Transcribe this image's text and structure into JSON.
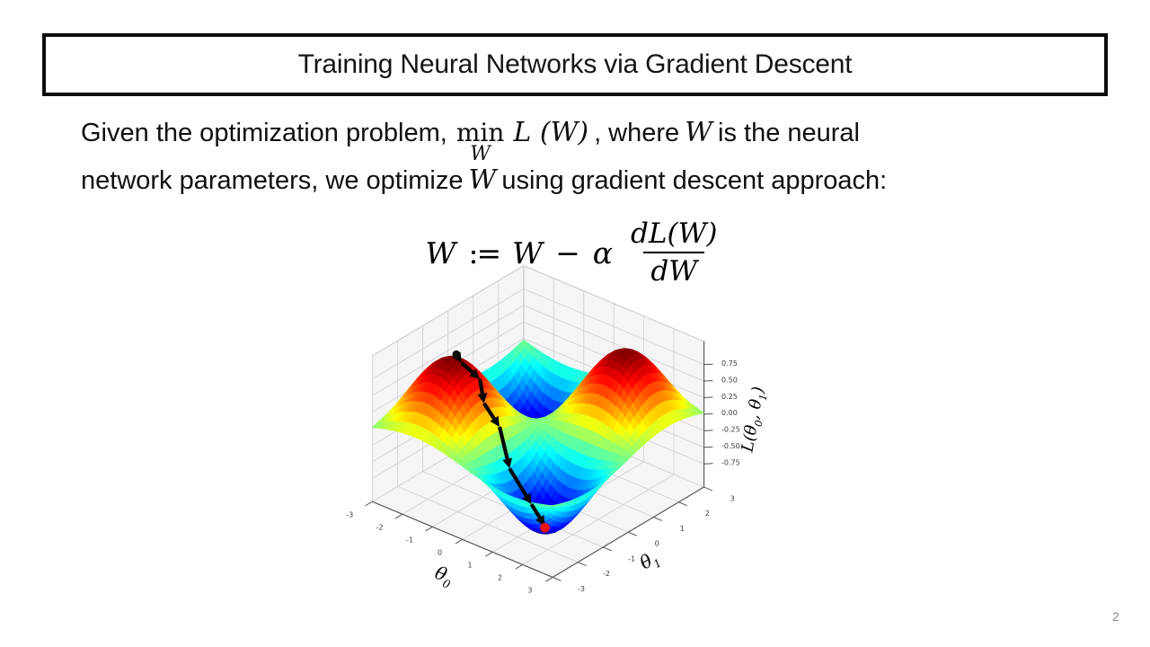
{
  "slide": {
    "title": "Training Neural Networks via Gradient Descent",
    "page_number": "2"
  },
  "body": {
    "seg1": "Given the optimization problem,",
    "min_op": "min",
    "min_sub": "W",
    "objective": "L (W)",
    "seg2": ", where",
    "w1": "W",
    "seg3": "is the neural",
    "seg4": "network parameters, we optimize",
    "w2": "W",
    "seg5": "using gradient descent approach:"
  },
  "formula": {
    "lhs": "W",
    "assign": ":=",
    "rhs_w": "W",
    "minus": "−",
    "alpha": "α",
    "numerator": "dL(W)",
    "denominator": "dW"
  },
  "chart_data": {
    "type": "surface3d",
    "title": "",
    "function": "L(theta0, theta1) = sin(theta0) * sin(theta1)",
    "colormap": "jet",
    "grid_on": true,
    "x_axis": {
      "label_parts": [
        {
          "t": "θ"
        },
        {
          "t": "0",
          "sub": true
        }
      ],
      "ticks": [
        -3,
        -2,
        -1,
        0,
        1,
        2,
        3
      ],
      "range": [
        -3,
        3
      ]
    },
    "y_axis": {
      "label_parts": [
        {
          "t": "θ"
        },
        {
          "t": "1",
          "sub": true
        }
      ],
      "ticks": [
        -3,
        -2,
        -1,
        0,
        1,
        2,
        3
      ],
      "range": [
        -3,
        3
      ]
    },
    "z_axis": {
      "label_parts": [
        {
          "t": "L("
        },
        {
          "t": "θ"
        },
        {
          "t": "0",
          "sub": true
        },
        {
          "t": ", "
        },
        {
          "t": "θ"
        },
        {
          "t": "1",
          "sub": true
        },
        {
          "t": ")"
        }
      ],
      "ticks": [
        0.75,
        0.5,
        0.25,
        0,
        -0.25,
        -0.5,
        -0.75
      ],
      "range": [
        -1.1,
        1.1
      ]
    },
    "surface": {
      "amplitude": 1,
      "grid_n": 40
    },
    "descent_path": {
      "points": [
        [
          -1.55,
          -1.4
        ],
        [
          -1.25,
          -1.55
        ],
        [
          -0.85,
          -1.3
        ],
        [
          -0.5,
          -1.55
        ],
        [
          -0.15,
          -1.35
        ],
        [
          0.35,
          -1.55
        ],
        [
          0.95,
          -1.4
        ],
        [
          1.5,
          -1.52
        ]
      ],
      "line_color": "#060606",
      "start_marker_color": "#101010",
      "end_marker_color": "#e81414"
    }
  }
}
